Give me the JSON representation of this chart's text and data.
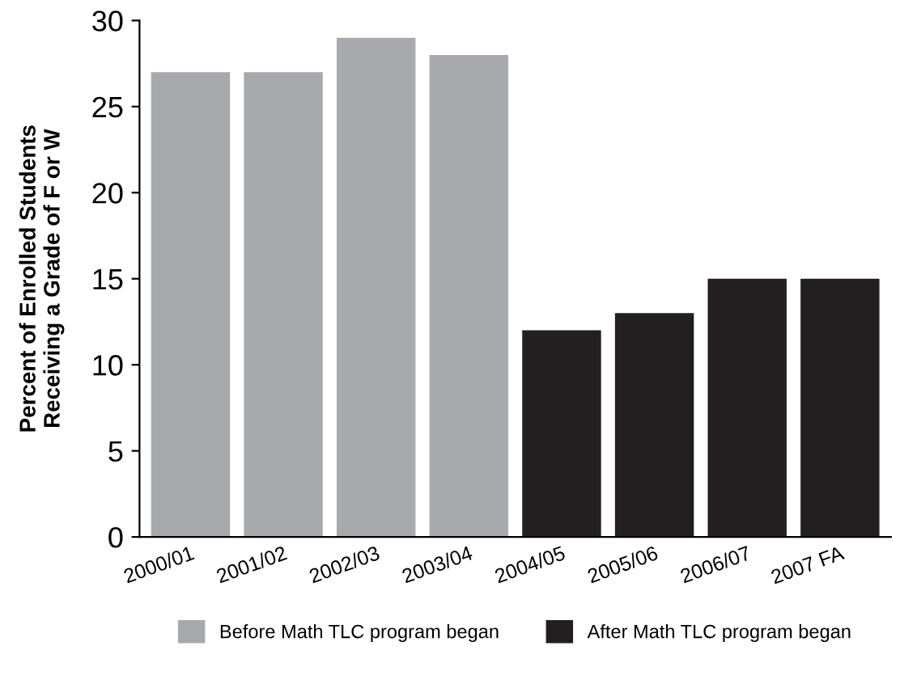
{
  "chart_data": {
    "type": "bar",
    "ylabel": "Percent of Enrolled Students\nReceiving a Grade of F or W",
    "categories": [
      "2000/01",
      "2001/02",
      "2002/03",
      "2003/04",
      "2004/05",
      "2005/06",
      "2006/07",
      "2007 FA"
    ],
    "series": [
      {
        "name": "Before Math TLC program began",
        "color": "#a7a9ac",
        "values": [
          27,
          27,
          29,
          28,
          null,
          null,
          null,
          null
        ]
      },
      {
        "name": "After Math TLC program began",
        "color": "#231f20",
        "values": [
          null,
          null,
          null,
          null,
          12,
          13,
          15,
          15
        ]
      }
    ],
    "stacked": true,
    "ylim": [
      0,
      30
    ],
    "yticks": [
      0,
      5,
      10,
      15,
      20,
      25,
      30
    ],
    "grid": false,
    "legend": "bottom"
  }
}
